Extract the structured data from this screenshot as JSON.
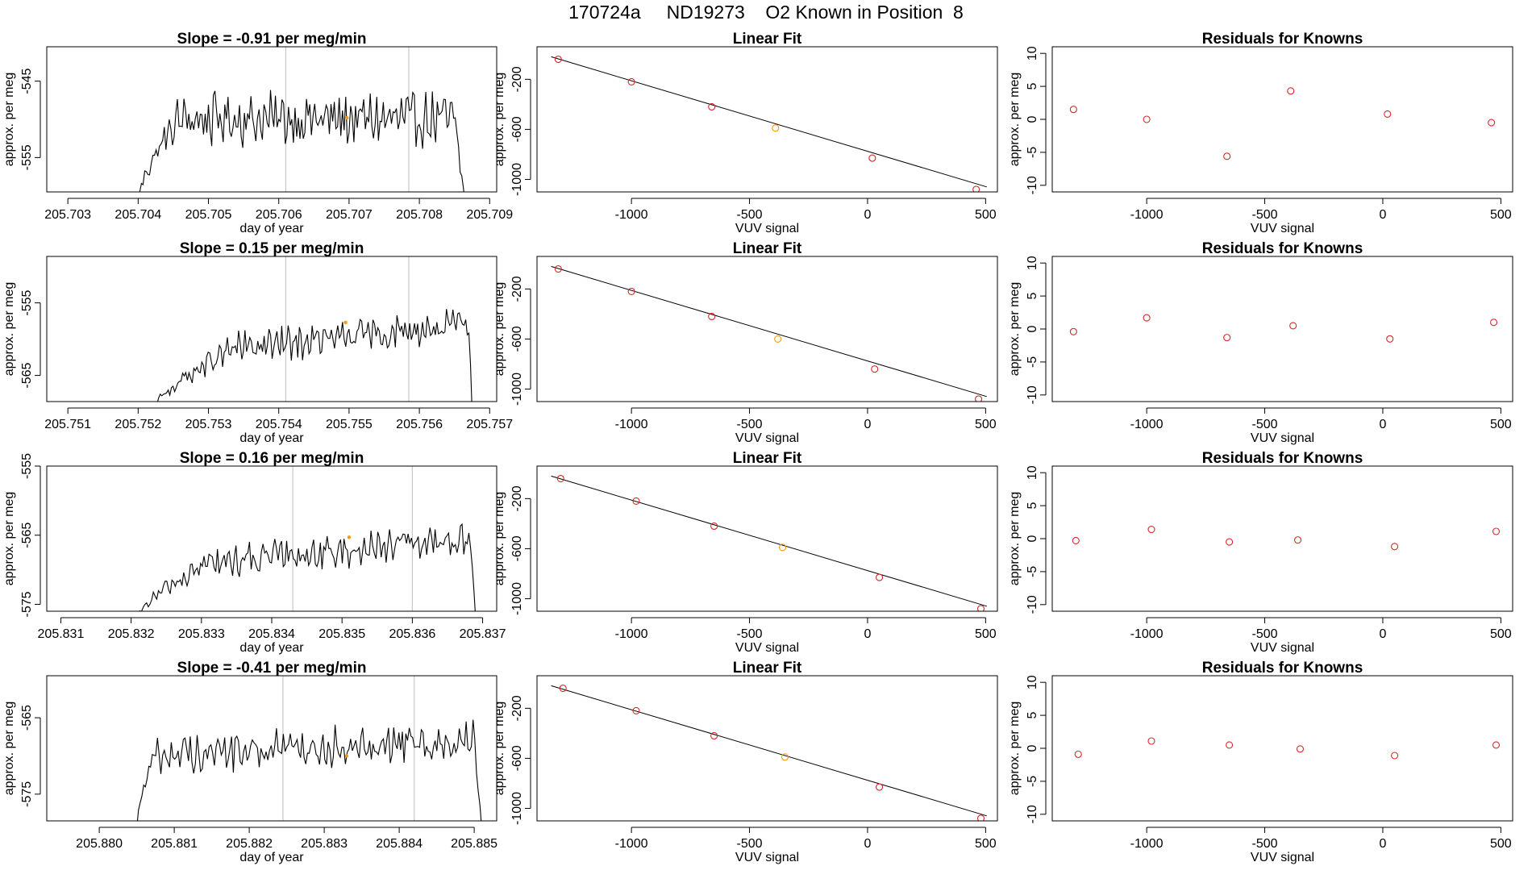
{
  "page": {
    "title": "170724a     ND19273    O2 Known in Position  8"
  },
  "colors": {
    "trace": "#000000",
    "point": "#d62728",
    "highlight": "#f39c12",
    "marker_line": "#c8c8c8",
    "axis": "#000000"
  },
  "chart_data": [
    {
      "type": "line",
      "row": 0,
      "col": 0,
      "title": "Slope =  -0.91  per meg/min",
      "xlabel": "day of year",
      "ylabel": "approx. per meg",
      "xlim": [
        205.7027,
        205.7091
      ],
      "ylim": [
        -559.5,
        -540.5
      ],
      "xticks": [
        205.703,
        205.704,
        205.705,
        205.706,
        205.707,
        205.708,
        205.709
      ],
      "xtick_labels": [
        "205.703",
        "205.704",
        "205.705",
        "205.706",
        "205.707",
        "205.708",
        "205.709"
      ],
      "yticks": [
        -545,
        -555
      ],
      "ytick_labels": [
        "-545",
        "-555"
      ],
      "vlines": [
        205.7061,
        205.70785
      ],
      "trace": {
        "x_start": 205.704,
        "x_end": 205.70865,
        "n": 200,
        "ramp_end": 205.7046,
        "fall_start": 205.7085,
        "base_start": -550,
        "base_end": -550,
        "amp": 2.4,
        "low": -561
      },
      "highlight_point": {
        "x": 205.70697,
        "y": -549.8
      }
    },
    {
      "type": "scatter",
      "row": 0,
      "col": 1,
      "title": "Linear Fit",
      "xlabel": "VUV signal",
      "ylabel": "approx. per meg",
      "xlim": [
        -1400,
        550
      ],
      "ylim": [
        -1100,
        60
      ],
      "xticks": [
        -1000,
        -500,
        0,
        500
      ],
      "xtick_labels": [
        "-1000",
        "-500",
        "0",
        "500"
      ],
      "yticks": [
        -200,
        -600,
        -1000
      ],
      "ytick_labels": [
        "-200",
        "-600",
        "-1000"
      ],
      "fit_line": {
        "x": [
          -1340,
          505
        ],
        "y": [
          -20,
          -1060
        ]
      },
      "points": [
        {
          "x": -1310,
          "y": -40,
          "highlight": false
        },
        {
          "x": -1000,
          "y": -220,
          "highlight": false
        },
        {
          "x": -660,
          "y": -420,
          "highlight": false
        },
        {
          "x": -390,
          "y": -590,
          "highlight": true
        },
        {
          "x": 20,
          "y": -830,
          "highlight": false
        },
        {
          "x": 460,
          "y": -1080,
          "highlight": false
        }
      ]
    },
    {
      "type": "scatter",
      "row": 0,
      "col": 2,
      "title": "Residuals for Knowns",
      "xlabel": "VUV signal",
      "ylabel": "approx. per meg",
      "xlim": [
        -1400,
        550
      ],
      "ylim": [
        -11,
        11
      ],
      "xticks": [
        -1000,
        -500,
        0,
        500
      ],
      "xtick_labels": [
        "-1000",
        "-500",
        "0",
        "500"
      ],
      "yticks": [
        10,
        5,
        0,
        -5,
        -10
      ],
      "ytick_labels": [
        "10",
        "5",
        "0",
        "-5",
        "-10"
      ],
      "points": [
        {
          "x": -1310,
          "y": 1.5
        },
        {
          "x": -1000,
          "y": 0
        },
        {
          "x": -660,
          "y": -5.6
        },
        {
          "x": -390,
          "y": 4.3
        },
        {
          "x": 20,
          "y": 0.8
        },
        {
          "x": 460,
          "y": -0.5
        }
      ]
    },
    {
      "type": "line",
      "row": 1,
      "col": 0,
      "title": "Slope =  0.15  per meg/min",
      "xlabel": "day of year",
      "ylabel": "approx. per meg",
      "xlim": [
        205.7507,
        205.7571
      ],
      "ylim": [
        -568.6,
        -548.6
      ],
      "xticks": [
        205.751,
        205.752,
        205.753,
        205.754,
        205.755,
        205.756,
        205.757
      ],
      "xtick_labels": [
        "205.751",
        "205.752",
        "205.753",
        "205.754",
        "205.755",
        "205.756",
        "205.757"
      ],
      "yticks": [
        -555,
        -565
      ],
      "ytick_labels": [
        "-555",
        "-565"
      ],
      "vlines": [
        205.7541,
        205.75585
      ],
      "trace": {
        "x_start": 205.7522,
        "x_end": 205.75675,
        "n": 200,
        "ramp_end": 205.75335,
        "fall_start": 205.7567,
        "base_start": -562.5,
        "base_end": -558,
        "amp": 1.6,
        "low": -570
      },
      "highlight_point": {
        "x": 205.75495,
        "y": -557.7
      }
    },
    {
      "type": "scatter",
      "row": 1,
      "col": 1,
      "title": "Linear Fit",
      "xlabel": "VUV signal",
      "ylabel": "approx. per meg",
      "xlim": [
        -1400,
        550
      ],
      "ylim": [
        -1100,
        60
      ],
      "xticks": [
        -1000,
        -500,
        0,
        500
      ],
      "xtick_labels": [
        "-1000",
        "-500",
        "0",
        "500"
      ],
      "yticks": [
        -200,
        -600,
        -1000
      ],
      "ytick_labels": [
        "-200",
        "-600",
        "-1000"
      ],
      "fit_line": {
        "x": [
          -1340,
          505
        ],
        "y": [
          -20,
          -1060
        ]
      },
      "points": [
        {
          "x": -1310,
          "y": -40,
          "highlight": false
        },
        {
          "x": -1000,
          "y": -220,
          "highlight": false
        },
        {
          "x": -660,
          "y": -420,
          "highlight": false
        },
        {
          "x": -380,
          "y": -600,
          "highlight": true
        },
        {
          "x": 30,
          "y": -840,
          "highlight": false
        },
        {
          "x": 470,
          "y": -1080,
          "highlight": false
        }
      ]
    },
    {
      "type": "scatter",
      "row": 1,
      "col": 2,
      "title": "Residuals for Knowns",
      "xlabel": "VUV signal",
      "ylabel": "approx. per meg",
      "xlim": [
        -1400,
        550
      ],
      "ylim": [
        -11,
        11
      ],
      "xticks": [
        -1000,
        -500,
        0,
        500
      ],
      "xtick_labels": [
        "-1000",
        "-500",
        "0",
        "500"
      ],
      "yticks": [
        10,
        5,
        0,
        -5,
        -10
      ],
      "ytick_labels": [
        "10",
        "5",
        "0",
        "-5",
        "-10"
      ],
      "points": [
        {
          "x": -1310,
          "y": -0.4
        },
        {
          "x": -1000,
          "y": 1.7
        },
        {
          "x": -660,
          "y": -1.3
        },
        {
          "x": -380,
          "y": 0.5
        },
        {
          "x": 30,
          "y": -1.5
        },
        {
          "x": 470,
          "y": 1.0
        }
      ]
    },
    {
      "type": "line",
      "row": 2,
      "col": 0,
      "title": "Slope =  0.16  per meg/min",
      "xlabel": "day of year",
      "ylabel": "approx. per meg",
      "xlim": [
        205.8308,
        205.8372
      ],
      "ylim": [
        -576,
        -555
      ],
      "xticks": [
        205.831,
        205.832,
        205.833,
        205.834,
        205.835,
        205.836,
        205.837
      ],
      "xtick_labels": [
        "205.831",
        "205.832",
        "205.833",
        "205.834",
        "205.835",
        "205.836",
        "205.837"
      ],
      "yticks": [
        -555,
        -565,
        -575
      ],
      "ytick_labels": [
        "-555",
        "-565",
        "-575"
      ],
      "vlines": [
        205.8343,
        205.836
      ],
      "trace": {
        "x_start": 205.8321,
        "x_end": 205.8369,
        "n": 200,
        "ramp_end": 205.8331,
        "fall_start": 205.83683,
        "base_start": -570,
        "base_end": -565.5,
        "amp": 1.7,
        "low": -577
      },
      "highlight_point": {
        "x": 205.8351,
        "y": -565.3
      }
    },
    {
      "type": "scatter",
      "row": 2,
      "col": 1,
      "title": "Linear Fit",
      "xlabel": "VUV signal",
      "ylabel": "approx. per meg",
      "xlim": [
        -1400,
        550
      ],
      "ylim": [
        -1100,
        60
      ],
      "xticks": [
        -1000,
        -500,
        0,
        500
      ],
      "xtick_labels": [
        "-1000",
        "-500",
        "0",
        "500"
      ],
      "yticks": [
        -200,
        -600,
        -1000
      ],
      "ytick_labels": [
        "-200",
        "-600",
        "-1000"
      ],
      "fit_line": {
        "x": [
          -1340,
          505
        ],
        "y": [
          -20,
          -1060
        ]
      },
      "points": [
        {
          "x": -1300,
          "y": -40,
          "highlight": false
        },
        {
          "x": -980,
          "y": -220,
          "highlight": false
        },
        {
          "x": -650,
          "y": -420,
          "highlight": false
        },
        {
          "x": -360,
          "y": -590,
          "highlight": true
        },
        {
          "x": 50,
          "y": -830,
          "highlight": false
        },
        {
          "x": 480,
          "y": -1080,
          "highlight": false
        }
      ]
    },
    {
      "type": "scatter",
      "row": 2,
      "col": 2,
      "title": "Residuals for Knowns",
      "xlabel": "VUV signal",
      "ylabel": "approx. per meg",
      "xlim": [
        -1400,
        550
      ],
      "ylim": [
        -11,
        11
      ],
      "xticks": [
        -1000,
        -500,
        0,
        500
      ],
      "xtick_labels": [
        "-1000",
        "-500",
        "0",
        "500"
      ],
      "yticks": [
        10,
        5,
        0,
        -5,
        -10
      ],
      "ytick_labels": [
        "10",
        "5",
        "0",
        "-5",
        "-10"
      ],
      "points": [
        {
          "x": -1300,
          "y": -0.3
        },
        {
          "x": -980,
          "y": 1.4
        },
        {
          "x": -650,
          "y": -0.5
        },
        {
          "x": -360,
          "y": -0.2
        },
        {
          "x": 50,
          "y": -1.2
        },
        {
          "x": 480,
          "y": 1.1
        }
      ]
    },
    {
      "type": "line",
      "row": 3,
      "col": 0,
      "title": "Slope =  -0.41  per meg/min",
      "xlabel": "day of year",
      "ylabel": "approx. per meg",
      "xlim": [
        205.8793,
        205.8853
      ],
      "ylim": [
        -578.5,
        -559.5
      ],
      "xticks": [
        205.88,
        205.881,
        205.882,
        205.883,
        205.884,
        205.885
      ],
      "xtick_labels": [
        "205.880",
        "205.881",
        "205.882",
        "205.883",
        "205.884",
        "205.885"
      ],
      "yticks": [
        -565,
        -575
      ],
      "ytick_labels": [
        "-565",
        "-575"
      ],
      "vlines": [
        205.88245,
        205.8842
      ],
      "trace": {
        "x_start": 205.8805,
        "x_end": 205.8851,
        "n": 200,
        "ramp_end": 205.88075,
        "fall_start": 205.885,
        "base_start": -570,
        "base_end": -567.8,
        "amp": 1.8,
        "low": -579.5
      },
      "highlight_point": {
        "x": 205.8833,
        "y": -570
      }
    },
    {
      "type": "scatter",
      "row": 3,
      "col": 1,
      "title": "Linear Fit",
      "xlabel": "VUV signal",
      "ylabel": "approx. per meg",
      "xlim": [
        -1400,
        550
      ],
      "ylim": [
        -1100,
        60
      ],
      "xticks": [
        -1000,
        -500,
        0,
        500
      ],
      "xtick_labels": [
        "-1000",
        "-500",
        "0",
        "500"
      ],
      "yticks": [
        -200,
        -600,
        -1000
      ],
      "ytick_labels": [
        "-200",
        "-600",
        "-1000"
      ],
      "fit_line": {
        "x": [
          -1340,
          505
        ],
        "y": [
          -20,
          -1060
        ]
      },
      "points": [
        {
          "x": -1290,
          "y": -40,
          "highlight": false
        },
        {
          "x": -980,
          "y": -220,
          "highlight": false
        },
        {
          "x": -650,
          "y": -420,
          "highlight": false
        },
        {
          "x": -350,
          "y": -590,
          "highlight": true
        },
        {
          "x": 50,
          "y": -830,
          "highlight": false
        },
        {
          "x": 480,
          "y": -1080,
          "highlight": false
        }
      ]
    },
    {
      "type": "scatter",
      "row": 3,
      "col": 2,
      "title": "Residuals for Knowns",
      "xlabel": "VUV signal",
      "ylabel": "approx. per meg",
      "xlim": [
        -1400,
        550
      ],
      "ylim": [
        -11,
        11
      ],
      "xticks": [
        -1000,
        -500,
        0,
        500
      ],
      "xtick_labels": [
        "-1000",
        "-500",
        "0",
        "500"
      ],
      "yticks": [
        10,
        5,
        0,
        -5,
        -10
      ],
      "ytick_labels": [
        "10",
        "5",
        "0",
        "-5",
        "-10"
      ],
      "points": [
        {
          "x": -1290,
          "y": -0.9
        },
        {
          "x": -980,
          "y": 1.1
        },
        {
          "x": -650,
          "y": 0.5
        },
        {
          "x": -350,
          "y": -0.1
        },
        {
          "x": 50,
          "y": -1.1
        },
        {
          "x": 480,
          "y": 0.5
        }
      ]
    }
  ]
}
